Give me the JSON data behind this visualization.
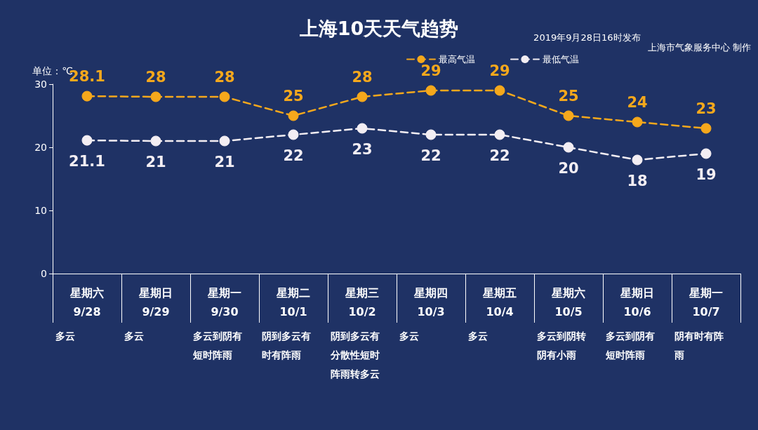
{
  "chart_data": {
    "type": "line",
    "title": "上海10天天气趋势",
    "subtitle": "2019年9月28日16时发布",
    "ylabel": "单位：℃",
    "categories": [
      "星期六\n9/28",
      "星期日\n9/29",
      "星期一\n9/30",
      "星期二\n10/1",
      "星期三\n10/2",
      "星期四\n10/3",
      "星期五\n10/4",
      "星期六\n10/5",
      "星期日\n10/6",
      "星期一\n10/7"
    ],
    "series": [
      {
        "name": "最高气温",
        "color": "#f5a81c",
        "values": [
          28.1,
          28,
          28,
          25,
          28,
          29,
          29,
          25,
          24,
          23
        ]
      },
      {
        "name": "最低气温",
        "color": "#f3eef3",
        "values": [
          21.1,
          21,
          21,
          22,
          23,
          22,
          22,
          20,
          18,
          19
        ]
      }
    ],
    "annotations": [
      "上海市气象服务中心 制作",
      "多云",
      "多云",
      "多云到阴有短时阵雨",
      "阴到多云有时有阵雨",
      "阴到多云有分散性短时阵雨转多云",
      "多云",
      "多云",
      "多云到阴转阴有小雨",
      "多云到阴有短时阵雨",
      "阴有时有阵雨"
    ],
    "ylim": [
      0,
      30
    ],
    "yticks": [
      0,
      10,
      20,
      30
    ],
    "grid": false,
    "legend": "top right",
    "marker": "circle",
    "line_style": "dashed",
    "data_labels": true
  }
}
